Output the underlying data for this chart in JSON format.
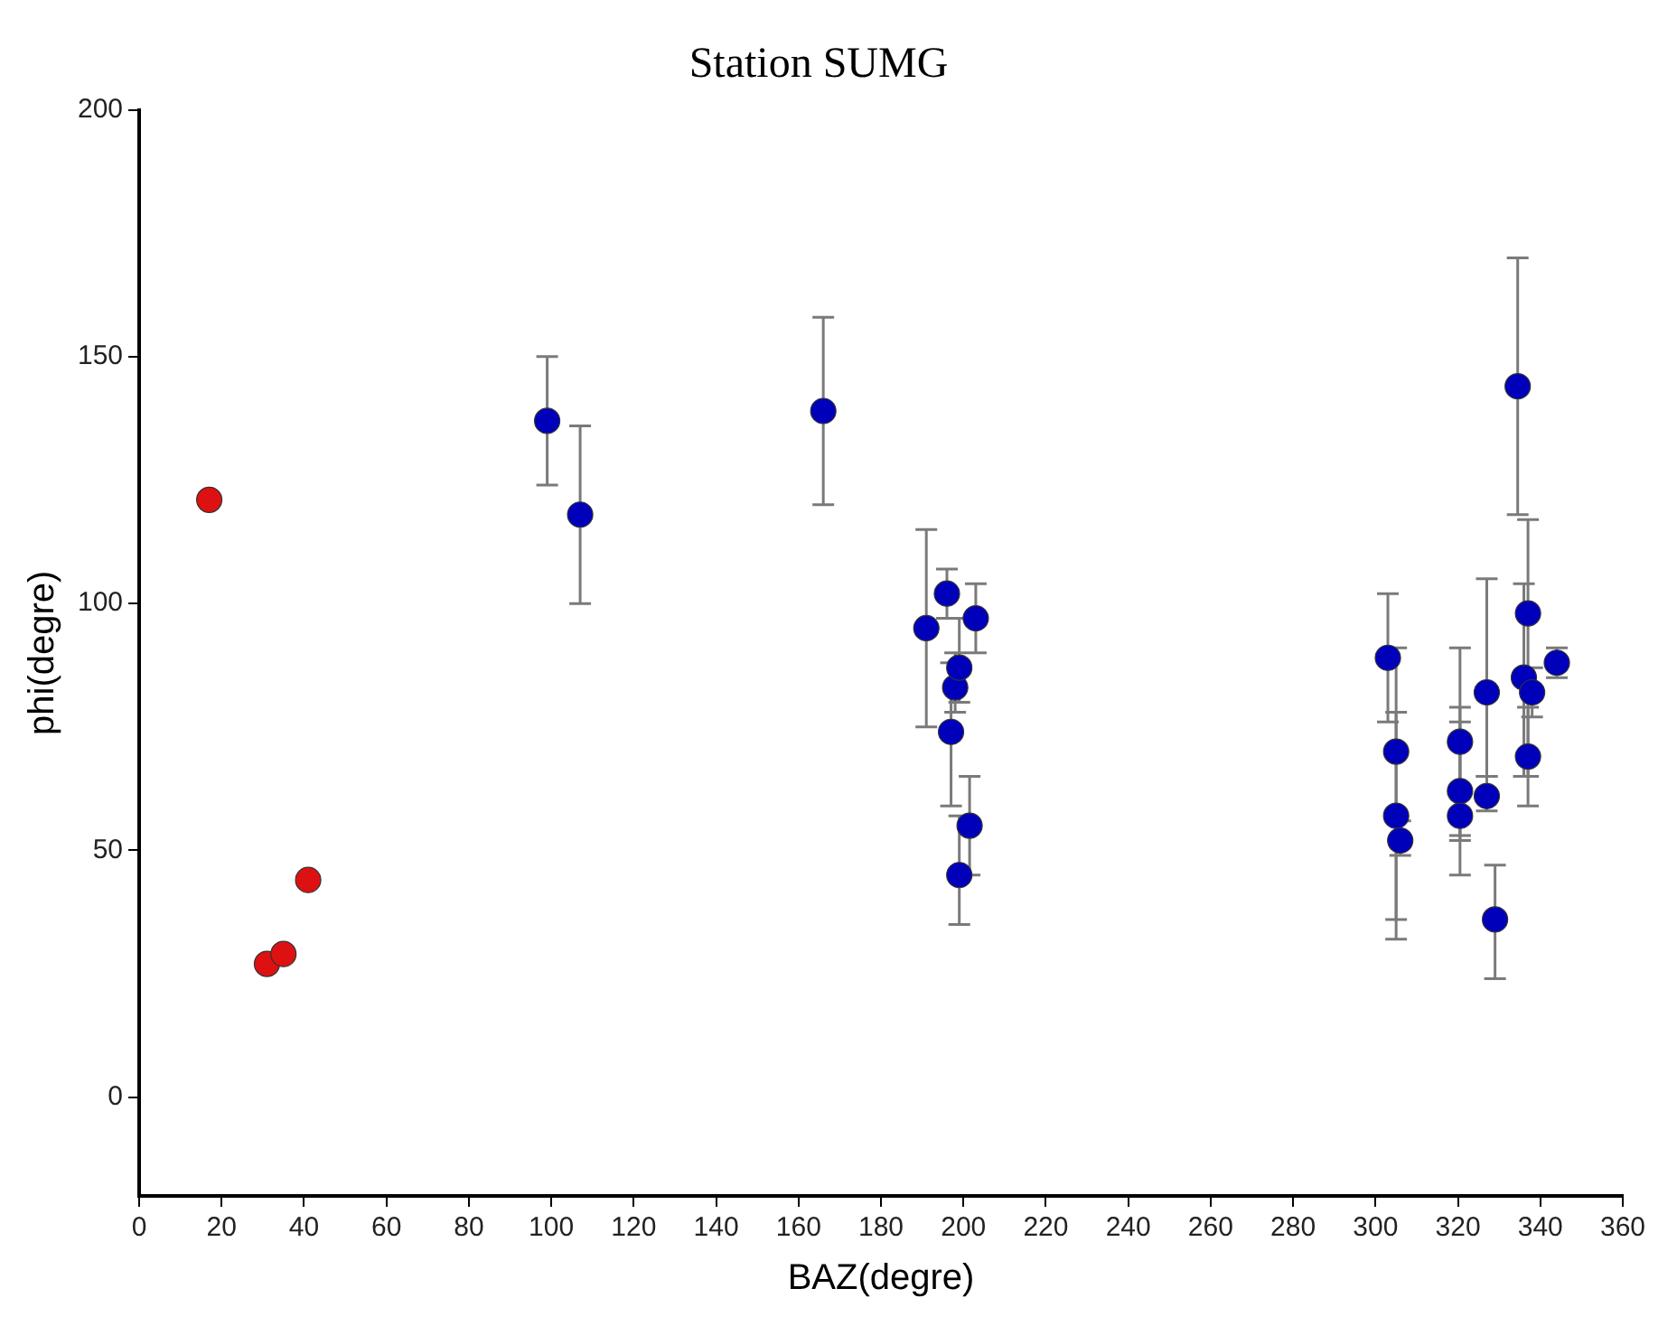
{
  "chart_data": {
    "type": "scatter",
    "title": "Station SUMG",
    "xlabel": "BAZ(degre)",
    "ylabel": "phi(degre)",
    "xlim": [
      0,
      360
    ],
    "xticks": [
      0,
      20,
      40,
      60,
      80,
      100,
      120,
      140,
      160,
      180,
      200,
      220,
      240,
      260,
      280,
      300,
      320,
      340,
      360
    ],
    "ylim": [
      -20,
      200
    ],
    "yticks": [
      0,
      50,
      100,
      150,
      200
    ],
    "grid": false,
    "legend": false,
    "marker": "circle",
    "series": [
      {
        "color": "#dd1111",
        "x": [
          17,
          31,
          35,
          41
        ],
        "values": [
          121,
          27,
          29,
          44
        ]
      },
      {
        "color": "#0000bb",
        "x": [
          99,
          107,
          166,
          191,
          196,
          197,
          198,
          199,
          199,
          201,
          201.5,
          203,
          303,
          305,
          305,
          306,
          320.5,
          320.5,
          320.5,
          327,
          327,
          329,
          334.5,
          337,
          336,
          338,
          337,
          344
        ],
        "values": [
          137,
          118,
          139,
          95,
          102,
          74,
          83,
          87,
          45,
          null,
          55,
          97,
          89,
          70,
          57,
          52,
          72,
          62,
          57,
          82,
          61,
          36,
          144,
          98,
          85,
          82,
          69,
          88
        ],
        "errors": [
          [
            124,
            150
          ],
          [
            100,
            136
          ],
          [
            120,
            158
          ],
          [
            75,
            115
          ],
          [
            97,
            107
          ],
          [
            59,
            88
          ],
          [
            78,
            90
          ],
          [
            80,
            97
          ],
          [
            35,
            57
          ],
          null,
          [
            45,
            65
          ],
          [
            90,
            104
          ],
          [
            76,
            102
          ],
          [
            36,
            91
          ],
          [
            32,
            78
          ],
          [
            49,
            56
          ],
          [
            45,
            91
          ],
          [
            53,
            79
          ],
          [
            52,
            76
          ],
          [
            65,
            105
          ],
          [
            58,
            65
          ],
          [
            24,
            47
          ],
          [
            118,
            170
          ],
          [
            59,
            117
          ],
          [
            65,
            104
          ],
          [
            77,
            87
          ],
          [
            65,
            79
          ],
          [
            85,
            91
          ]
        ]
      }
    ]
  }
}
